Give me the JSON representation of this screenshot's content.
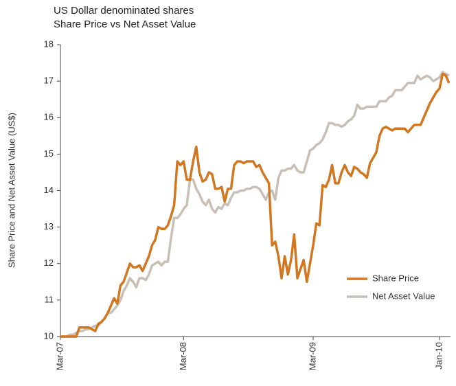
{
  "chart_data": {
    "type": "line",
    "title": "US Dollar denominated shares",
    "subtitle": "Share Price vs Net Asset Value",
    "y_label": "Share Price and Net Asset Value (US$)",
    "categories": [
      "Mar-07",
      null,
      null,
      null,
      null,
      null,
      null,
      null,
      null,
      null,
      null,
      null,
      null,
      null,
      null,
      null,
      null,
      null,
      null,
      null,
      null,
      null,
      null,
      null,
      null,
      null,
      null,
      null,
      null,
      null,
      null,
      null,
      null,
      null,
      null,
      null,
      null,
      null,
      null,
      "Mar-08",
      null,
      null,
      null,
      null,
      null,
      null,
      null,
      null,
      null,
      null,
      null,
      null,
      null,
      null,
      null,
      null,
      null,
      null,
      null,
      null,
      null,
      null,
      null,
      null,
      null,
      null,
      null,
      null,
      null,
      null,
      null,
      null,
      null,
      null,
      null,
      null,
      null,
      null,
      null,
      null,
      "Mar-09",
      null,
      null,
      null,
      null,
      null,
      null,
      null,
      null,
      null,
      null,
      null,
      null,
      null,
      null,
      null,
      null,
      null,
      null,
      null,
      null,
      null,
      null,
      null,
      null,
      null,
      null,
      null,
      null,
      null,
      null,
      null,
      null,
      null,
      null,
      null,
      null,
      null,
      null,
      null,
      "Jan-10",
      null,
      null,
      null
    ],
    "series": [
      {
        "name": "Share Price",
        "color": "#d2761f",
        "values": [
          10,
          10,
          10,
          10,
          10,
          10,
          10.25,
          10.25,
          10.25,
          10.25,
          10.2,
          10.15,
          10.35,
          10.4,
          10.5,
          10.65,
          10.85,
          11.05,
          10.9,
          11.4,
          11.5,
          11.75,
          12.0,
          11.9,
          11.9,
          11.95,
          11.8,
          12.0,
          12.2,
          12.5,
          12.65,
          13.0,
          12.95,
          12.95,
          13.05,
          13.3,
          13.6,
          14.8,
          14.7,
          14.8,
          14.3,
          14.3,
          14.8,
          15.2,
          14.5,
          14.25,
          14.3,
          14.5,
          14.45,
          14.05,
          14.05,
          14.1,
          13.7,
          14.05,
          14.05,
          14.7,
          14.8,
          14.8,
          14.75,
          14.8,
          14.8,
          14.8,
          14.65,
          14.7,
          14.5,
          14.35,
          14.2,
          12.5,
          12.6,
          12.2,
          11.6,
          12.2,
          11.7,
          12.1,
          12.8,
          11.6,
          11.85,
          12.1,
          11.5,
          12.0,
          12.5,
          13.1,
          13.05,
          14.15,
          14.1,
          14.3,
          14.7,
          14.2,
          14.2,
          14.5,
          14.7,
          14.5,
          14.4,
          14.65,
          14.6,
          14.5,
          14.45,
          14.35,
          14.75,
          14.9,
          15.05,
          15.5,
          15.7,
          15.75,
          15.7,
          15.65,
          15.7,
          15.7,
          15.7,
          15.7,
          15.6,
          15.7,
          15.8,
          15.8,
          15.8,
          16.0,
          16.2,
          16.4,
          16.55,
          16.7,
          16.8,
          17.2,
          17.15,
          16.95
        ]
      },
      {
        "name": "Net Asset Value",
        "color": "#c8bfb6",
        "values": [
          10,
          10,
          10,
          10.05,
          10.05,
          10.1,
          10.15,
          10.15,
          10.2,
          10.2,
          10.25,
          10.3,
          10.3,
          10.4,
          10.5,
          10.65,
          10.65,
          10.75,
          10.85,
          11.0,
          11.25,
          11.4,
          11.6,
          11.5,
          11.35,
          11.6,
          11.6,
          11.55,
          11.7,
          11.95,
          12.0,
          12.05,
          11.95,
          12.05,
          12.05,
          12.7,
          13.25,
          13.25,
          13.35,
          13.5,
          13.6,
          14.3,
          14.3,
          14.05,
          13.9,
          13.7,
          13.6,
          13.75,
          13.5,
          13.4,
          13.55,
          13.5,
          13.65,
          13.6,
          13.8,
          13.95,
          13.95,
          14.0,
          14.0,
          14.05,
          14.05,
          14.1,
          14.1,
          14.05,
          13.9,
          13.75,
          13.95,
          14.0,
          13.75,
          14.35,
          14.55,
          14.55,
          14.6,
          14.6,
          14.7,
          14.55,
          14.5,
          14.5,
          14.8,
          15.1,
          15.15,
          15.25,
          15.3,
          15.4,
          15.6,
          15.85,
          15.85,
          15.8,
          15.8,
          15.75,
          15.8,
          15.9,
          15.95,
          16.05,
          16.35,
          16.25,
          16.25,
          16.3,
          16.3,
          16.3,
          16.3,
          16.45,
          16.45,
          16.45,
          16.55,
          16.6,
          16.75,
          16.75,
          16.75,
          16.85,
          16.95,
          16.95,
          16.95,
          17.15,
          17.05,
          17.1,
          17.15,
          17.1,
          17.0,
          17.05,
          17.1,
          17.25,
          17.2,
          17.15
        ]
      }
    ],
    "ylim": [
      10,
      18
    ],
    "yticks": [
      10,
      11,
      12,
      13,
      14,
      15,
      16,
      17,
      18
    ],
    "grid": false,
    "legend": "lower right"
  }
}
